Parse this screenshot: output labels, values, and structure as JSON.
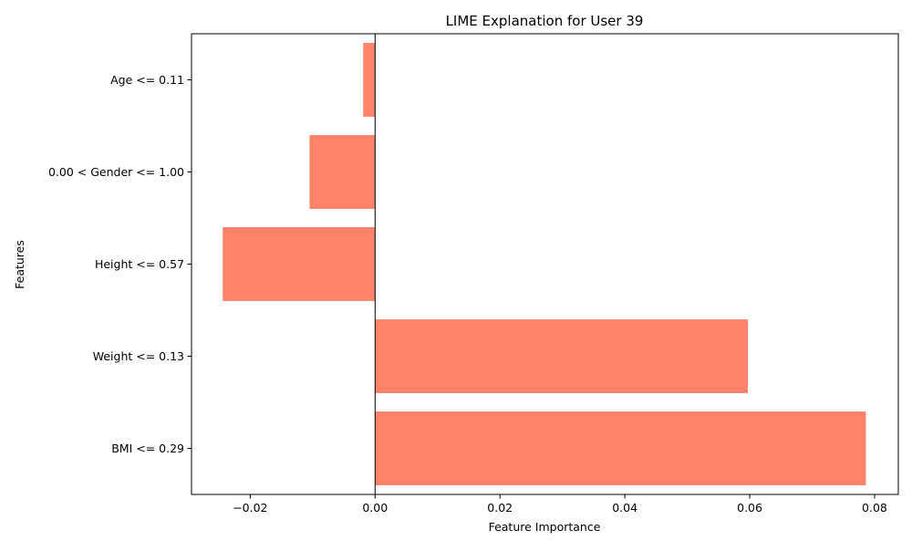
{
  "chart_data": {
    "type": "bar",
    "orientation": "horizontal",
    "title": "LIME Explanation for User 39",
    "xlabel": "Feature Importance",
    "ylabel": "Features",
    "categories": [
      "BMI <= 0.29",
      "Weight <= 0.13",
      "Height <= 0.57",
      "0.00 < Gender <= 1.00",
      "Age <= 0.11"
    ],
    "values": [
      0.0786,
      0.0597,
      -0.0244,
      -0.0105,
      -0.0019
    ],
    "xlim": [
      -0.0294,
      0.0838
    ],
    "xticks": [
      -0.02,
      0.0,
      0.02,
      0.04,
      0.06,
      0.08
    ],
    "xtick_labels": [
      "−0.02",
      "0.00",
      "0.02",
      "0.04",
      "0.06",
      "0.08"
    ],
    "bar_color": "#ff826b",
    "zero_line": true,
    "grid": false,
    "legend": "none"
  }
}
